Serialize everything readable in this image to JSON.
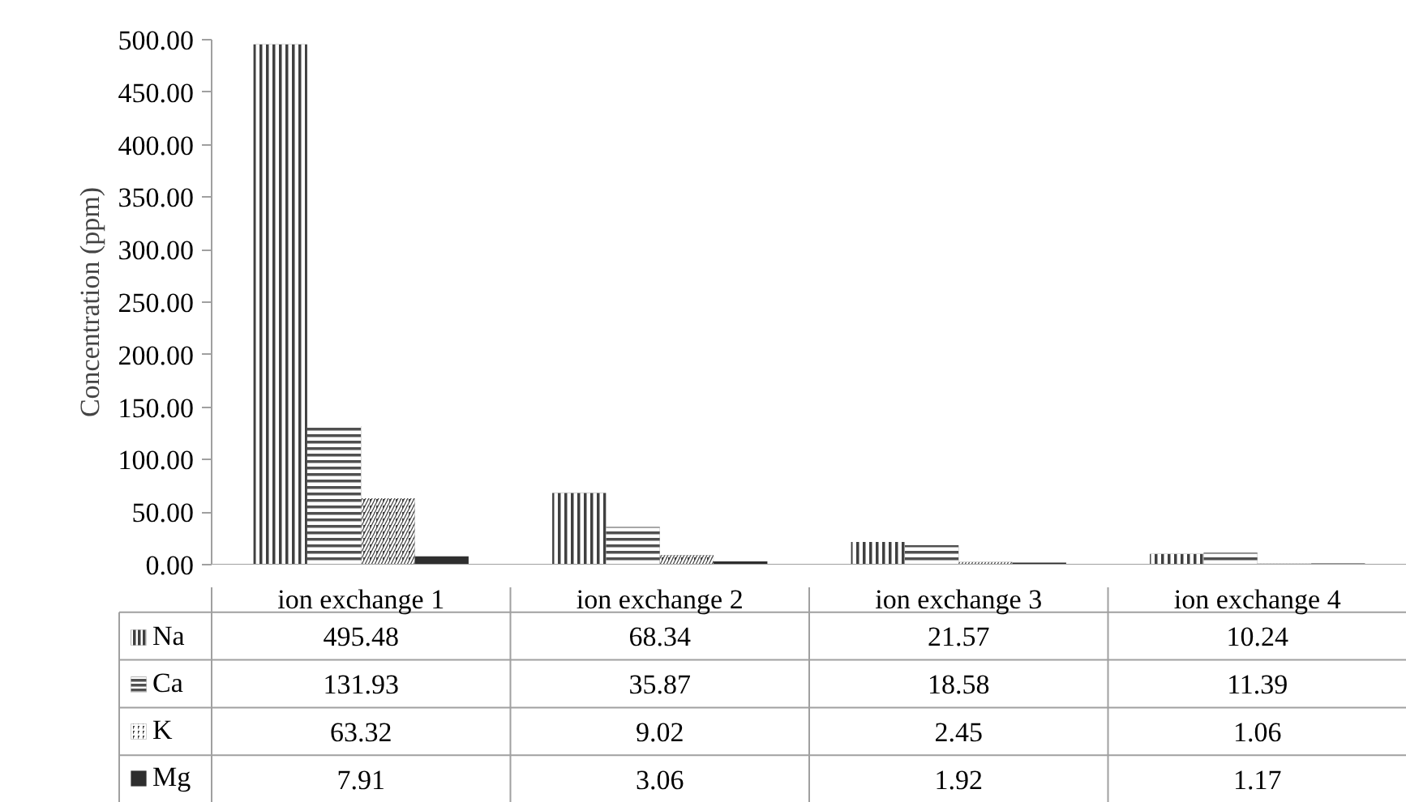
{
  "chart_data": {
    "type": "bar",
    "ylabel": "Concentration (ppm)",
    "categories": [
      "ion exchange 1",
      "ion exchange 2",
      "ion exchange 3",
      "ion exchange 4"
    ],
    "series": [
      {
        "name": "Na",
        "color": "#404040",
        "values": [
          495.48,
          68.34,
          21.57,
          10.24
        ]
      },
      {
        "name": "Ca",
        "color": "#505050",
        "values": [
          131.93,
          35.87,
          18.58,
          11.39
        ]
      },
      {
        "name": "K",
        "color": "#404040",
        "values": [
          63.32,
          9.02,
          2.45,
          1.06
        ]
      },
      {
        "name": "Mg",
        "color": "#2e2e2e",
        "values": [
          7.91,
          3.06,
          1.92,
          1.17
        ]
      }
    ],
    "ylim": [
      0,
      500
    ],
    "yticks": [
      {
        "value": 0,
        "label": "0.00"
      },
      {
        "value": 50,
        "label": "50.00"
      },
      {
        "value": 100,
        "label": "100.00"
      },
      {
        "value": 150,
        "label": "150.00"
      },
      {
        "value": 200,
        "label": "200.00"
      },
      {
        "value": 250,
        "label": "250.00"
      },
      {
        "value": 300,
        "label": "300.00"
      },
      {
        "value": 350,
        "label": "350.00"
      },
      {
        "value": 400,
        "label": "400.00"
      },
      {
        "value": 450,
        "label": "450.00"
      },
      {
        "value": 500,
        "label": "500.00"
      }
    ],
    "data_labels": true,
    "legend": "bottom left",
    "grid": false
  }
}
